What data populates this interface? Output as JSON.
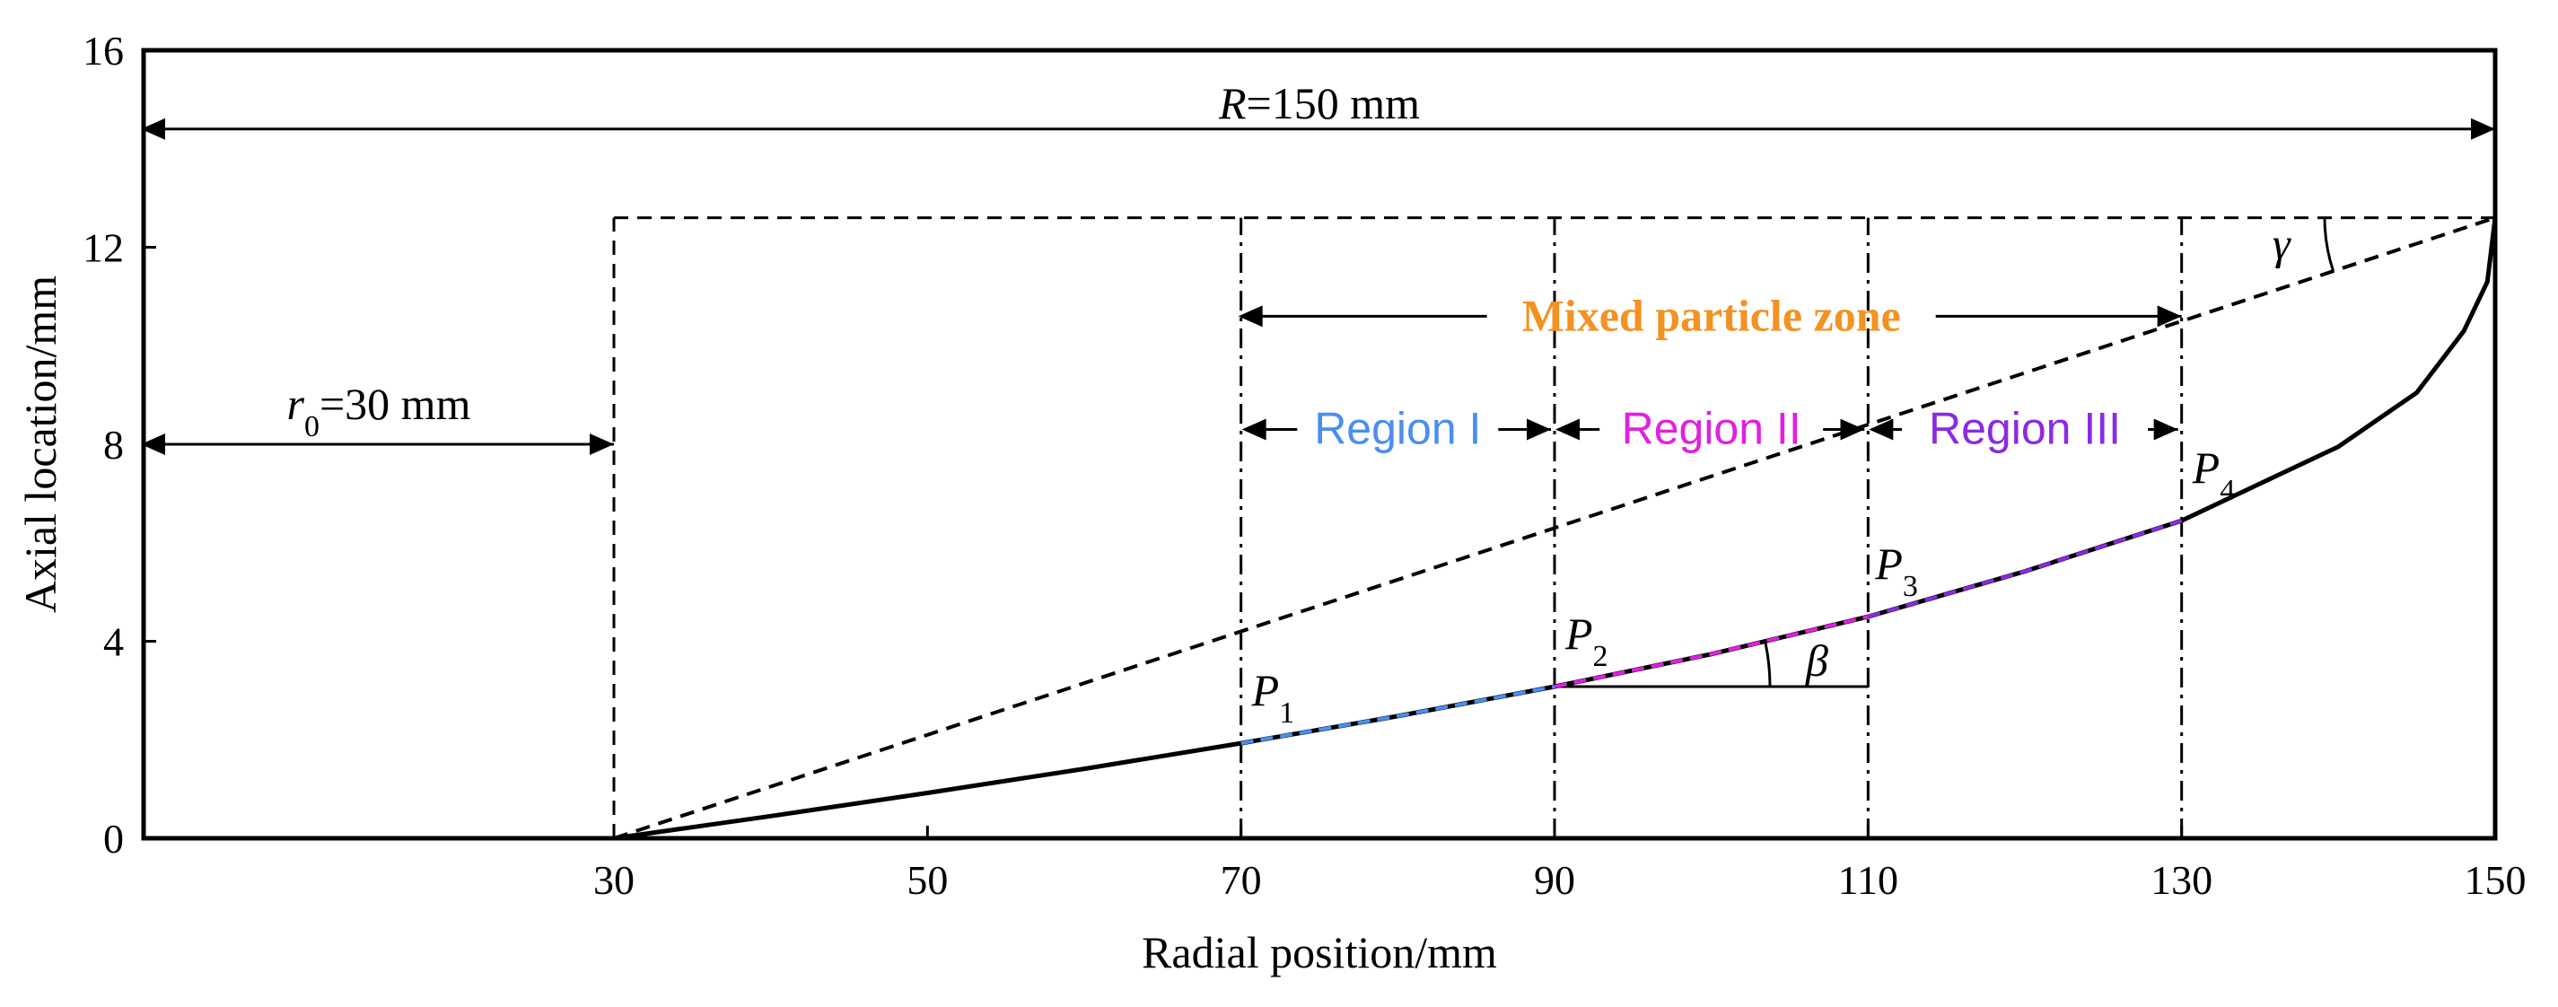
{
  "chart_data": {
    "type": "line",
    "title": "",
    "xlabel": "Radial position/mm",
    "ylabel": "Axial location/mm",
    "xlim": [
      0,
      150
    ],
    "ylim": [
      0,
      16
    ],
    "x_ticks": [
      30,
      50,
      70,
      90,
      110,
      130,
      150
    ],
    "y_ticks": [
      0,
      4,
      8,
      12,
      16
    ],
    "grid": false,
    "series": [
      {
        "name": "Profile curve",
        "style": "solid",
        "color": "#000000",
        "x": [
          30,
          40,
          50,
          60,
          70,
          80,
          90,
          100,
          110,
          120,
          130,
          140,
          145,
          148,
          149.5,
          150
        ],
        "y": [
          0,
          0.45,
          0.92,
          1.41,
          1.93,
          2.48,
          3.08,
          3.74,
          4.5,
          5.42,
          6.45,
          7.95,
          9.05,
          10.3,
          11.3,
          12.6
        ]
      },
      {
        "name": "Reference line (gamma)",
        "style": "dashed",
        "color": "#000000",
        "x": [
          30,
          150
        ],
        "y": [
          0,
          12.6
        ]
      },
      {
        "name": "Region I",
        "style": "dashed",
        "color": "#4A8EF0",
        "x": [
          70,
          80,
          90
        ],
        "y": [
          1.93,
          2.48,
          3.08
        ]
      },
      {
        "name": "Region II",
        "style": "dashed",
        "color": "#E020E0",
        "x": [
          90,
          100,
          110
        ],
        "y": [
          3.08,
          3.74,
          4.5
        ]
      },
      {
        "name": "Region III",
        "style": "dashed",
        "color": "#8A2BE2",
        "x": [
          110,
          120,
          130
        ],
        "y": [
          4.5,
          5.42,
          6.45
        ]
      }
    ],
    "vertical_lines": [
      {
        "x": 30,
        "y_top": 12.6,
        "style": "dashed"
      },
      {
        "x": 70,
        "y_top": 12.6,
        "style": "dashdot"
      },
      {
        "x": 90,
        "y_top": 12.6,
        "style": "dashdot"
      },
      {
        "x": 110,
        "y_top": 12.6,
        "style": "dashdot"
      },
      {
        "x": 130,
        "y_top": 12.6,
        "style": "dashdot"
      }
    ],
    "top_dashed_line": {
      "x": [
        30,
        150
      ],
      "y": 12.6
    },
    "beta_horizontal": {
      "x": [
        90,
        110
      ],
      "y": 3.08
    },
    "points": [
      {
        "label": "P",
        "sub": "1",
        "x": 70,
        "y": 1.93
      },
      {
        "label": "P",
        "sub": "2",
        "x": 90,
        "y": 3.08
      },
      {
        "label": "P",
        "sub": "3",
        "x": 110,
        "y": 4.5
      },
      {
        "label": "P",
        "sub": "4",
        "x": 130,
        "y": 6.45
      }
    ],
    "annotations": {
      "R_label": {
        "italic": "R",
        "text": "=150 mm",
        "y": 14.4,
        "x_from": 0,
        "x_to": 150
      },
      "r0_label": {
        "italic": "r",
        "sub": "0",
        "text": "=30 mm",
        "y": 8.0,
        "x_from": 0,
        "x_to": 30
      },
      "mixed_zone": {
        "text": "Mixed particle zone",
        "color": "#F39222",
        "y": 10.6,
        "x_from": 70,
        "x_to": 130
      },
      "regions": [
        {
          "text": "Region I",
          "color": "#4A8EF0",
          "x_from": 70,
          "x_to": 90,
          "y": 8.3
        },
        {
          "text": "Region II",
          "color": "#E020E0",
          "x_from": 90,
          "x_to": 110,
          "y": 8.3
        },
        {
          "text": "Region III",
          "color": "#8A2BE2",
          "x_from": 110,
          "x_to": 130,
          "y": 8.3
        }
      ],
      "beta": "β",
      "gamma": "γ"
    }
  }
}
